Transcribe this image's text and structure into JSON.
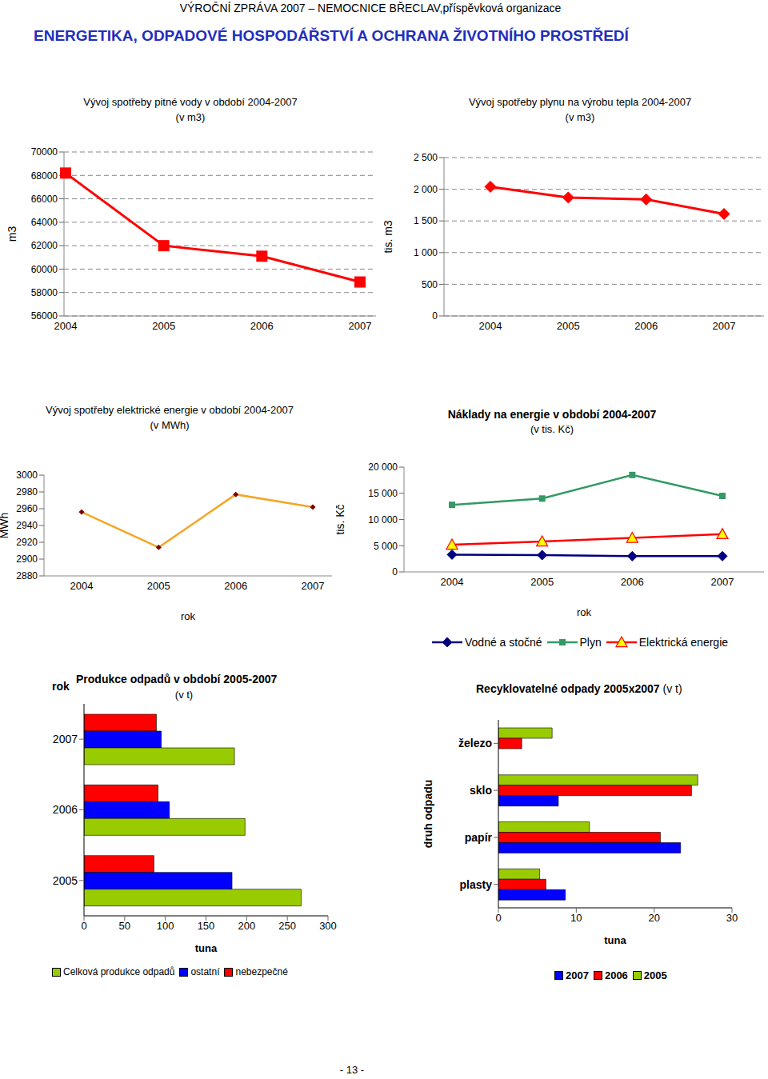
{
  "page": {
    "header": "VÝROČNÍ ZPRÁVA 2007 – NEMOCNICE BŘECLAV,příspěvková organizace",
    "title": "ENERGETIKA, ODPADOVÉ HOSPODÁŘSTVÍ A OCHRANA ŽIVOTNÍHO PROSTŘEDÍ",
    "page_number": "- 13 -"
  },
  "chart_data": [
    {
      "type": "line",
      "title": "Vývoj spotřeby pitné vody v období 2004-2007",
      "subtitle": "(v m3)",
      "y_label": "m3",
      "categories": [
        "2004",
        "2005",
        "2006",
        "2007"
      ],
      "values": [
        68200,
        62000,
        61100,
        58900
      ],
      "color": "#FF0000",
      "marker": "square",
      "ylim": [
        56000,
        70000
      ],
      "yticks": [
        56000,
        58000,
        60000,
        62000,
        64000,
        66000,
        68000,
        70000
      ],
      "grid": true
    },
    {
      "type": "line",
      "title": "Vývoj spotřeby plynu na výrobu tepla 2004-2007",
      "subtitle": "(v m3)",
      "y_label": "tis. m3",
      "categories": [
        "2004",
        "2005",
        "2006",
        "2007"
      ],
      "values": [
        2040,
        1870,
        1840,
        1610
      ],
      "color": "#FF0000",
      "marker": "diamond",
      "ylim": [
        0,
        2500
      ],
      "yticks": [
        0,
        500,
        {
          "value": 1000,
          "label": "1 000"
        },
        {
          "value": 1500,
          "label": "1 500"
        },
        {
          "value": 2000,
          "label": "2 000"
        },
        {
          "value": 2500,
          "label": "2 500"
        }
      ],
      "grid": true
    },
    {
      "type": "line",
      "title": "Vývoj spotřeby elektrické energie v období 2004-2007",
      "subtitle": "(v MWh)",
      "x_label": "rok",
      "y_label": "MWh",
      "categories": [
        "2004",
        "2005",
        "2006",
        "2007"
      ],
      "values": [
        2956,
        2914,
        2977,
        2962
      ],
      "color": "#F5A623",
      "marker": "diamond",
      "ylim": [
        2880,
        3000
      ],
      "yticks": [
        2880,
        2900,
        2920,
        2940,
        2960,
        2980,
        3000
      ],
      "grid": false
    },
    {
      "type": "line",
      "title": "Náklady na energie v období 2004-2007",
      "subtitle": "(v tis. Kč)",
      "x_label": "rok",
      "y_label": "tis. Kč",
      "categories": [
        "2004",
        "2005",
        "2006",
        "2007"
      ],
      "series": [
        {
          "name": "Vodné a stočné",
          "color": "#000080",
          "marker": "diamond",
          "values": [
            3300,
            3200,
            3000,
            3000
          ]
        },
        {
          "name": "Plyn",
          "color": "#339966",
          "marker": "square",
          "values": [
            12800,
            14000,
            18500,
            14500
          ]
        },
        {
          "name": "Elektrická energie",
          "color": "#FF0000",
          "marker": "triangle",
          "values": [
            5200,
            5800,
            6500,
            7200
          ]
        }
      ],
      "ylim": [
        0,
        20000
      ],
      "yticks": [
        0,
        {
          "value": 5000,
          "label": "5 000"
        },
        {
          "value": 10000,
          "label": "10 000"
        },
        {
          "value": 15000,
          "label": "15 000"
        },
        {
          "value": 20000,
          "label": "20 000"
        }
      ],
      "grid": false,
      "legend": "bottom"
    },
    {
      "type": "bar",
      "orientation": "horizontal",
      "title": "Produkce odpadů v období 2005-2007",
      "subtitle": "(v t)",
      "y_label": "rok",
      "x_label": "tuna",
      "categories": [
        "2007",
        "2006",
        "2005"
      ],
      "series": [
        {
          "name": "Celková produkce odpadů",
          "color": "#99CC00",
          "values": [
            185,
            198,
            267
          ]
        },
        {
          "name": "ostatní",
          "color": "#0000FF",
          "values": [
            95,
            105,
            182
          ]
        },
        {
          "name": "nebezpečné",
          "color": "#FF0000",
          "values": [
            89,
            91,
            86
          ]
        }
      ],
      "xlim": [
        0,
        300
      ],
      "xticks": [
        0,
        50,
        100,
        150,
        200,
        250,
        300
      ],
      "grid": false,
      "legend": "bottom"
    },
    {
      "type": "bar",
      "orientation": "horizontal",
      "title": "Recyklovatelné odpady 2005x2007",
      "subtitle": "(v t)",
      "y_label": "druh odpadu",
      "x_label": "tuna",
      "categories": [
        "železo",
        "sklo",
        "papír",
        "plasty"
      ],
      "series": [
        {
          "name": "2007",
          "color": "#0000FF",
          "values": [
            null,
            7.7,
            23.4,
            8.6
          ]
        },
        {
          "name": "2006",
          "color": "#FF0000",
          "values": [
            3.0,
            24.8,
            20.8,
            6.1
          ]
        },
        {
          "name": "2005",
          "color": "#99CC00",
          "values": [
            6.9,
            25.6,
            11.7,
            5.3
          ]
        }
      ],
      "xlim": [
        0,
        30
      ],
      "xticks": [
        0,
        10,
        20,
        30
      ],
      "grid": false,
      "legend": "bottom"
    }
  ]
}
